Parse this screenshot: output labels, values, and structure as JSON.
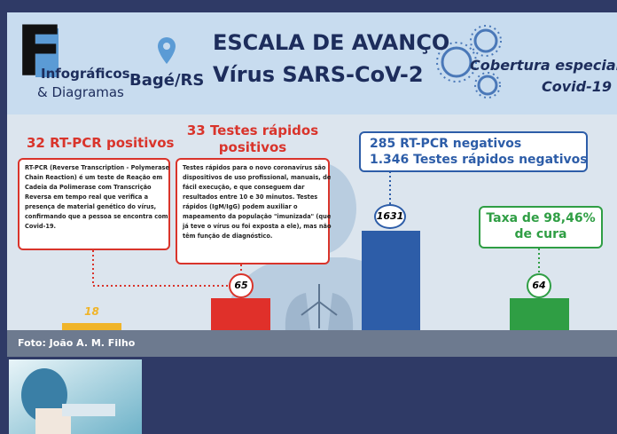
{
  "header": {
    "logo_letter": "F",
    "logo_line1": "Infográficos",
    "logo_line2": "& Diagramas",
    "location": "Bagé/RS",
    "title_line1": "ESCALA DE AVANÇO",
    "title_line2": "Vírus SARS-CoV-2",
    "special_line1": "Cobertura especial",
    "special_line2": "Covid-19"
  },
  "panels": [
    {
      "title_lines": [
        "32 RT-PCR positivos"
      ],
      "body_lines": [
        "RT-PCR (Reverse Transcription - Polymerase",
        "Chain Reaction) é um teste de Reação em",
        "Cadeia da Polimerase com Transcrição",
        "Reversa em tempo real que verifica a",
        "presença de material genético do vírus,",
        "confirmando que a pessoa se encontra com",
        "Covid-19."
      ]
    },
    {
      "title_lines": [
        "33 Testes rápidos",
        "positivos"
      ],
      "body_lines": [
        "Testes rápidos para o novo coronavírus são",
        "dispositivos de uso profissional, manuais, de",
        "fácil execução, e que conseguem dar",
        "resultados entre 10 e 30 minutos. Testes",
        "rápidos (IgM/IgG) podem auxiliar o",
        "mapeamento da população \"imunizada\" (que",
        "já teve o vírus ou foi exposta a ele), mas não",
        "têm função de diagnóstico."
      ]
    },
    {
      "title_lines": [
        "285 RT-PCR negativos",
        "1.346 Testes rápidos negativos"
      ]
    },
    {
      "title_lines": [
        "Taxa de 98,46%",
        "de cura"
      ]
    }
  ],
  "bars": [
    "18",
    "65",
    "1631",
    "64"
  ],
  "caption": "Foto: João A. M. Filho"
}
